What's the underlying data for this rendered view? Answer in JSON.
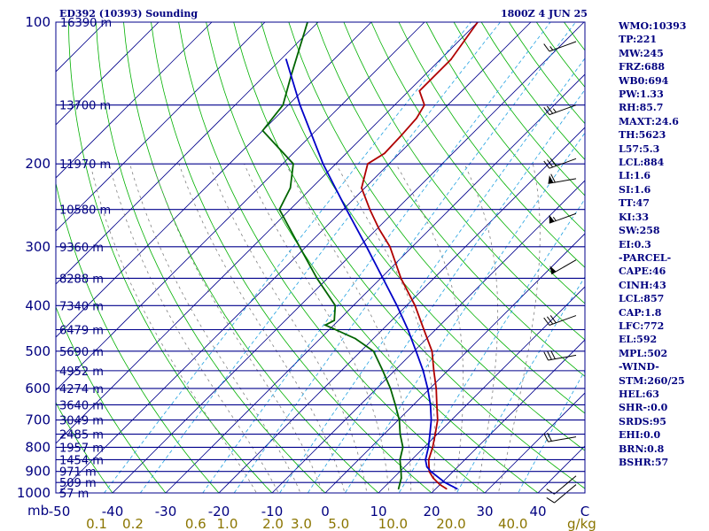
{
  "header": {
    "station": "ED392 (10393) Sounding",
    "time": "1800Z  4 JUN 25"
  },
  "stats": [
    "WMO:10393",
    "TP:221",
    "MW:245",
    "FRZ:688",
    "WB0:694",
    "PW:1.33",
    "RH:85.7",
    "MAXT:24.6",
    "TH:5623",
    "L57:5.3",
    "LCL:884",
    "LI:1.6",
    "SI:1.6",
    "TT:47",
    "KI:33",
    "SW:258",
    "EI:0.3",
    "-PARCEL-",
    "CAPE:46",
    "CINH:43",
    "LCL:857",
    "CAP:1.8",
    "LFC:772",
    "EL:592",
    "MPL:502",
    "-WIND-",
    "STM:260/25",
    "HEL:63",
    "SHR-:0.0",
    "SRDS:95",
    "EHI:0.0",
    "BRN:0.8",
    "BSHR:57"
  ],
  "colors": {
    "isobar": "#00008b",
    "isotherm": "#00008b",
    "dry_adiabat": "#00b000",
    "mixing_ratio": "#1fa0e0",
    "moist_adiabat": "#808080",
    "temperature": "#b00000",
    "dewpoint": "#006400",
    "parcel": "#0000c8",
    "label": "#000080",
    "mixing_label": "#8b7500"
  },
  "chart_data": {
    "type": "line",
    "title": "ED392 (10393) Sounding",
    "y_axis": "pressure (mb), log scale",
    "x_axis": "temperature (C), skewed",
    "pressure_ticks": [
      100,
      200,
      300,
      400,
      500,
      600,
      700,
      800,
      900,
      1000
    ],
    "pressure_unit": "mb",
    "temperature_ticks": [
      -50,
      -40,
      -30,
      -20,
      -10,
      0,
      10,
      20,
      30,
      40
    ],
    "temperature_tick_labels": [
      "-50",
      "-40",
      "-30",
      "-20",
      "-10",
      "0",
      "10",
      "20",
      "30",
      "40"
    ],
    "mixing_ratio_labels": [
      "0.1",
      "0.2",
      "0.6",
      "1.0",
      "2.0",
      "3.0",
      "5.0",
      "10.0",
      "20.0",
      "40.0"
    ],
    "mixing_ratio_unit": "g/kg",
    "height_levels": [
      {
        "p": 100,
        "label": "16390 m"
      },
      {
        "p": 150,
        "label": "13700 m"
      },
      {
        "p": 200,
        "label": "11970 m"
      },
      {
        "p": 250,
        "label": "10580 m"
      },
      {
        "p": 300,
        "label": "9360 m"
      },
      {
        "p": 350,
        "label": "8288 m"
      },
      {
        "p": 400,
        "label": "7340 m"
      },
      {
        "p": 450,
        "label": "6479 m"
      },
      {
        "p": 500,
        "label": "5690 m"
      },
      {
        "p": 550,
        "label": "4952 m"
      },
      {
        "p": 600,
        "label": "4274 m"
      },
      {
        "p": 650,
        "label": "3640 m"
      },
      {
        "p": 700,
        "label": "3049 m"
      },
      {
        "p": 750,
        "label": "2485 m"
      },
      {
        "p": 800,
        "label": "1957 m"
      },
      {
        "p": 850,
        "label": "1454 m"
      },
      {
        "p": 900,
        "label": "971 m"
      },
      {
        "p": 950,
        "label": "509 m"
      },
      {
        "p": 1000,
        "label": "57 m"
      }
    ],
    "series": [
      {
        "name": "temperature",
        "points": [
          [
            980,
            22.0
          ],
          [
            960,
            20.0
          ],
          [
            930,
            17.5
          ],
          [
            900,
            15.5
          ],
          [
            850,
            13.2
          ],
          [
            800,
            11.6
          ],
          [
            750,
            9.6
          ],
          [
            700,
            7.4
          ],
          [
            650,
            4.4
          ],
          [
            600,
            1.2
          ],
          [
            550,
            -2.6
          ],
          [
            500,
            -6.6
          ],
          [
            450,
            -12.2
          ],
          [
            400,
            -18.4
          ],
          [
            350,
            -26.2
          ],
          [
            300,
            -34.2
          ],
          [
            275,
            -39.6
          ],
          [
            250,
            -45.0
          ],
          [
            225,
            -50.6
          ],
          [
            200,
            -54.0
          ],
          [
            190,
            -52.8
          ],
          [
            175,
            -53.0
          ],
          [
            160,
            -53.4
          ],
          [
            150,
            -54.4
          ],
          [
            140,
            -58.0
          ],
          [
            120,
            -58.0
          ],
          [
            100,
            -60.0
          ]
        ]
      },
      {
        "name": "dewpoint",
        "points": [
          [
            980,
            13.0
          ],
          [
            930,
            11.5
          ],
          [
            900,
            10.2
          ],
          [
            850,
            7.8
          ],
          [
            800,
            6.0
          ],
          [
            750,
            3.0
          ],
          [
            700,
            0.2
          ],
          [
            650,
            -3.4
          ],
          [
            600,
            -7.4
          ],
          [
            550,
            -12.2
          ],
          [
            500,
            -17.6
          ],
          [
            470,
            -23.4
          ],
          [
            440,
            -31.6
          ],
          [
            430,
            -30.8
          ],
          [
            400,
            -33.4
          ],
          [
            350,
            -42.0
          ],
          [
            300,
            -51.2
          ],
          [
            250,
            -62.0
          ],
          [
            225,
            -64.0
          ],
          [
            200,
            -68.0
          ],
          [
            170,
            -80.0
          ],
          [
            150,
            -81.0
          ],
          [
            130,
            -85.0
          ],
          [
            100,
            -92.0
          ]
        ]
      },
      {
        "name": "parcel",
        "points": [
          [
            980,
            24.0
          ],
          [
            950,
            20.5
          ],
          [
            900,
            15.8
          ],
          [
            880,
            14.2
          ],
          [
            850,
            12.6
          ],
          [
            800,
            10.8
          ],
          [
            750,
            8.6
          ],
          [
            700,
            6.2
          ],
          [
            650,
            3.2
          ],
          [
            600,
            -0.4
          ],
          [
            550,
            -4.6
          ],
          [
            500,
            -9.6
          ],
          [
            450,
            -15.2
          ],
          [
            400,
            -21.8
          ],
          [
            350,
            -29.6
          ],
          [
            300,
            -38.6
          ],
          [
            250,
            -49.4
          ],
          [
            200,
            -62.4
          ],
          [
            150,
            -77.8
          ],
          [
            120,
            -89.0
          ]
        ]
      }
    ],
    "wind_barbs": [
      {
        "p": 960,
        "dir": 230,
        "speed": 10
      },
      {
        "p": 920,
        "dir": 230,
        "speed": 10
      },
      {
        "p": 760,
        "dir": 260,
        "speed": 20
      },
      {
        "p": 510,
        "dir": 260,
        "speed": 30
      },
      {
        "p": 420,
        "dir": 250,
        "speed": 30
      },
      {
        "p": 320,
        "dir": 240,
        "speed": 50
      },
      {
        "p": 255,
        "dir": 250,
        "speed": 55
      },
      {
        "p": 215,
        "dir": 260,
        "speed": 60
      },
      {
        "p": 195,
        "dir": 250,
        "speed": 30
      },
      {
        "p": 150,
        "dir": 250,
        "speed": 25
      },
      {
        "p": 110,
        "dir": 250,
        "speed": 15
      }
    ]
  }
}
